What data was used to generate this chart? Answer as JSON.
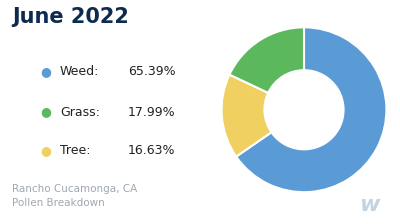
{
  "title": "June 2022",
  "title_color": "#0d2b4e",
  "subtitle": "Rancho Cucamonga, CA\nPollen Breakdown",
  "subtitle_color": "#a0a8b0",
  "labels": [
    "Weed",
    "Grass",
    "Tree"
  ],
  "values": [
    65.39,
    17.99,
    16.63
  ],
  "colors": [
    "#5b9bd5",
    "#5cb85c",
    "#f0d060"
  ],
  "background_color": "#ffffff",
  "legend_items": [
    {
      "label": "Weed:",
      "pct": "65.39%"
    },
    {
      "label": "Grass:",
      "pct": "17.99%"
    },
    {
      "label": "Tree:",
      "pct": "16.63%"
    }
  ],
  "pie_order": [
    0,
    2,
    1
  ],
  "startangle": 90,
  "donut_width": 0.52,
  "watermark": "w",
  "watermark_color": "#c5d3e0"
}
